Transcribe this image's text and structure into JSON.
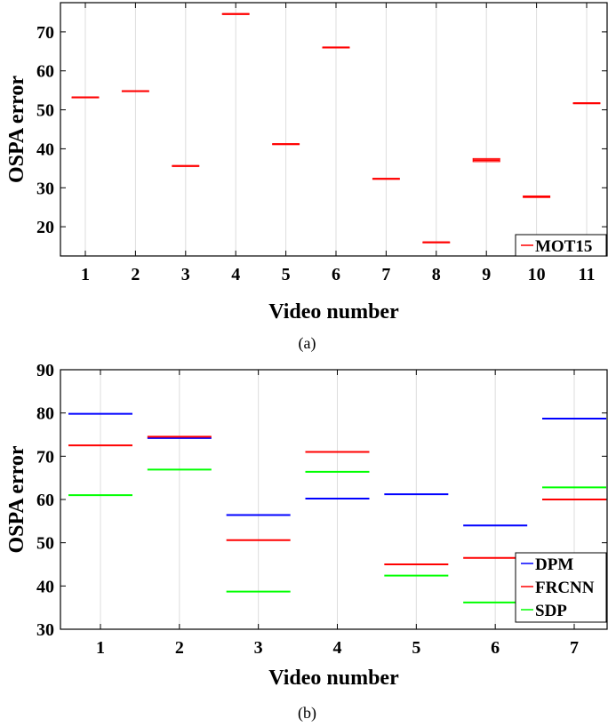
{
  "chart_data": [
    {
      "type": "box",
      "caption": "(a)",
      "xlabel": "Video number",
      "ylabel": "OSPA error",
      "categories": [
        "1",
        "2",
        "3",
        "4",
        "5",
        "6",
        "7",
        "8",
        "9",
        "10",
        "11"
      ],
      "yticks": [
        20,
        30,
        40,
        50,
        60,
        70
      ],
      "ylim": [
        12.5,
        77.5
      ],
      "grid": "x",
      "legend_position": "bottom-right",
      "series": [
        {
          "name": "MOT15",
          "color": "#ff0000",
          "values": [
            53.2,
            54.8,
            35.6,
            74.6,
            41.2,
            66.0,
            32.3,
            16.0,
            37.1,
            27.7,
            51.7
          ],
          "q1": [
            53.2,
            54.7,
            35.5,
            74.5,
            41.1,
            65.9,
            32.2,
            15.9,
            36.7,
            27.5,
            51.6
          ],
          "q3": [
            53.3,
            54.9,
            35.7,
            74.7,
            41.3,
            66.1,
            32.4,
            16.1,
            37.5,
            27.9,
            51.8
          ]
        }
      ]
    },
    {
      "type": "box",
      "caption": "(b)",
      "xlabel": "Video number",
      "ylabel": "OSPA error",
      "categories": [
        "1",
        "2",
        "3",
        "4",
        "5",
        "6",
        "7"
      ],
      "yticks": [
        30,
        40,
        50,
        60,
        70,
        80,
        90
      ],
      "ylim": [
        30,
        90
      ],
      "grid": "x",
      "legend_position": "bottom-right",
      "series": [
        {
          "name": "DPM",
          "color": "#0000ff",
          "values": [
            79.8,
            74.2,
            56.4,
            60.2,
            61.2,
            54.0,
            78.7
          ]
        },
        {
          "name": "FRCNN",
          "color": "#ff0000",
          "values": [
            72.5,
            74.5,
            50.6,
            71.0,
            45.0,
            46.5,
            60.0
          ]
        },
        {
          "name": "SDP",
          "color": "#00ff00",
          "values": [
            61.0,
            66.9,
            38.7,
            66.4,
            42.4,
            36.2,
            62.8
          ]
        }
      ]
    }
  ]
}
